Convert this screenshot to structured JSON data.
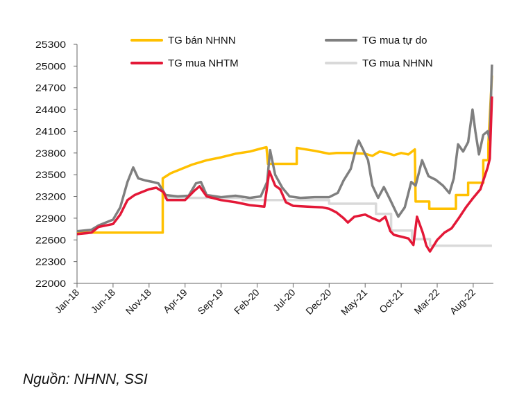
{
  "chart_data": {
    "type": "line",
    "title": "",
    "xlabel": "",
    "ylabel": "",
    "ylim": [
      22000,
      25300
    ],
    "yticks": [
      22000,
      22300,
      22600,
      22900,
      23200,
      23500,
      23800,
      24100,
      24400,
      24700,
      25000,
      25300
    ],
    "xtick_labels": [
      "Jan-18",
      "Jun-18",
      "Nov-18",
      "Apr-19",
      "Sep-19",
      "Feb-20",
      "Jul-20",
      "Dec-20",
      "May-21",
      "Oct-21",
      "Mar-22",
      "Aug-22"
    ],
    "x_unit": "months since Jan-18 (tick every 5 months)",
    "grid": false,
    "legend_placement": "top",
    "series": [
      {
        "name": "TG mua NHNN",
        "color": "#D9D9D9",
        "points": [
          [
            11.9,
            23180
          ],
          [
            23,
            23180
          ],
          [
            23,
            23150
          ],
          [
            35,
            23150
          ],
          [
            35,
            23100
          ],
          [
            41.5,
            23100
          ],
          [
            41.5,
            22960
          ],
          [
            43.6,
            22960
          ],
          [
            43.6,
            22730
          ],
          [
            46.5,
            22730
          ],
          [
            46.5,
            22610
          ],
          [
            49,
            22610
          ],
          [
            49,
            22520
          ],
          [
            57.6,
            22520
          ]
        ]
      },
      {
        "name": "TG bán NHNN",
        "color": "#FFC000",
        "points": [
          [
            0,
            22700
          ],
          [
            11.9,
            22700
          ],
          [
            11.9,
            23450
          ],
          [
            13,
            23520
          ],
          [
            14.5,
            23580
          ],
          [
            16,
            23640
          ],
          [
            18,
            23700
          ],
          [
            20,
            23740
          ],
          [
            22,
            23790
          ],
          [
            24,
            23820
          ],
          [
            25.5,
            23860
          ],
          [
            26.3,
            23880
          ],
          [
            26.5,
            23650
          ],
          [
            30.5,
            23650
          ],
          [
            30.5,
            23870
          ],
          [
            33,
            23830
          ],
          [
            35,
            23790
          ],
          [
            36,
            23800
          ],
          [
            38,
            23800
          ],
          [
            40,
            23790
          ],
          [
            41,
            23760
          ],
          [
            42,
            23820
          ],
          [
            43,
            23800
          ],
          [
            44,
            23770
          ],
          [
            45,
            23800
          ],
          [
            46,
            23780
          ],
          [
            46.9,
            23850
          ],
          [
            47,
            23130
          ],
          [
            48.9,
            23130
          ],
          [
            48.9,
            23030
          ],
          [
            52.6,
            23030
          ],
          [
            52.6,
            23220
          ],
          [
            54.3,
            23220
          ],
          [
            54.3,
            23390
          ],
          [
            56.4,
            23390
          ],
          [
            56.4,
            23700
          ],
          [
            57.1,
            23700
          ],
          [
            57.1,
            23920
          ],
          [
            57.6,
            24870
          ]
        ]
      },
      {
        "name": "TG mua tự do",
        "color": "#7F7F7F",
        "points": [
          [
            0,
            22720
          ],
          [
            2,
            22740
          ],
          [
            3,
            22800
          ],
          [
            5,
            22880
          ],
          [
            6,
            23050
          ],
          [
            7,
            23400
          ],
          [
            7.8,
            23600
          ],
          [
            8.5,
            23450
          ],
          [
            9.5,
            23420
          ],
          [
            10.5,
            23400
          ],
          [
            11.3,
            23380
          ],
          [
            12.3,
            23220
          ],
          [
            14,
            23200
          ],
          [
            15.5,
            23210
          ],
          [
            16.5,
            23380
          ],
          [
            17.2,
            23400
          ],
          [
            18,
            23220
          ],
          [
            20,
            23190
          ],
          [
            22,
            23210
          ],
          [
            24,
            23180
          ],
          [
            25.5,
            23200
          ],
          [
            26.4,
            23400
          ],
          [
            26.8,
            23840
          ],
          [
            27.5,
            23500
          ],
          [
            28.5,
            23320
          ],
          [
            29.5,
            23200
          ],
          [
            31,
            23180
          ],
          [
            33,
            23190
          ],
          [
            35,
            23190
          ],
          [
            36.2,
            23250
          ],
          [
            37,
            23420
          ],
          [
            38,
            23580
          ],
          [
            38.7,
            23850
          ],
          [
            39.1,
            23970
          ],
          [
            39.7,
            23850
          ],
          [
            40.4,
            23700
          ],
          [
            41,
            23350
          ],
          [
            41.8,
            23180
          ],
          [
            42.6,
            23330
          ],
          [
            43.5,
            23150
          ],
          [
            44.6,
            22920
          ],
          [
            45.5,
            23050
          ],
          [
            46.4,
            23400
          ],
          [
            47,
            23350
          ],
          [
            47.9,
            23700
          ],
          [
            48.8,
            23480
          ],
          [
            49.8,
            23430
          ],
          [
            50.8,
            23350
          ],
          [
            51.7,
            23245
          ],
          [
            52.3,
            23450
          ],
          [
            52.9,
            23920
          ],
          [
            53.6,
            23820
          ],
          [
            54.3,
            23950
          ],
          [
            54.9,
            24400
          ],
          [
            55.3,
            24100
          ],
          [
            55.8,
            23780
          ],
          [
            56.4,
            24050
          ],
          [
            57,
            24100
          ],
          [
            57.3,
            23980
          ],
          [
            57.6,
            25020
          ]
        ]
      },
      {
        "name": "TG mua NHTM",
        "color": "#E31837",
        "points": [
          [
            0,
            22680
          ],
          [
            2,
            22700
          ],
          [
            3,
            22780
          ],
          [
            5,
            22820
          ],
          [
            6,
            22950
          ],
          [
            7,
            23150
          ],
          [
            8,
            23220
          ],
          [
            9,
            23260
          ],
          [
            10,
            23300
          ],
          [
            11,
            23320
          ],
          [
            12,
            23260
          ],
          [
            12.5,
            23150
          ],
          [
            15,
            23150
          ],
          [
            16.3,
            23280
          ],
          [
            17,
            23340
          ],
          [
            18,
            23200
          ],
          [
            20,
            23150
          ],
          [
            22,
            23120
          ],
          [
            24,
            23080
          ],
          [
            26,
            23060
          ],
          [
            26.7,
            23550
          ],
          [
            27.5,
            23350
          ],
          [
            28.2,
            23300
          ],
          [
            29,
            23120
          ],
          [
            30,
            23070
          ],
          [
            32,
            23060
          ],
          [
            34,
            23050
          ],
          [
            35,
            23030
          ],
          [
            36,
            22980
          ],
          [
            37,
            22900
          ],
          [
            37.6,
            22840
          ],
          [
            38.5,
            22920
          ],
          [
            40,
            22950
          ],
          [
            41,
            22900
          ],
          [
            42,
            22860
          ],
          [
            42.8,
            22920
          ],
          [
            43.5,
            22720
          ],
          [
            44,
            22670
          ],
          [
            46,
            22620
          ],
          [
            46.7,
            22530
          ],
          [
            47.2,
            22920
          ],
          [
            48,
            22700
          ],
          [
            48.5,
            22520
          ],
          [
            49,
            22440
          ],
          [
            50,
            22600
          ],
          [
            51,
            22700
          ],
          [
            52,
            22760
          ],
          [
            53,
            22900
          ],
          [
            54,
            23050
          ],
          [
            55,
            23180
          ],
          [
            56,
            23300
          ],
          [
            57,
            23600
          ],
          [
            57.3,
            23720
          ],
          [
            57.6,
            24580
          ]
        ]
      }
    ]
  },
  "source": "Nguồn: NHNN, SSI"
}
